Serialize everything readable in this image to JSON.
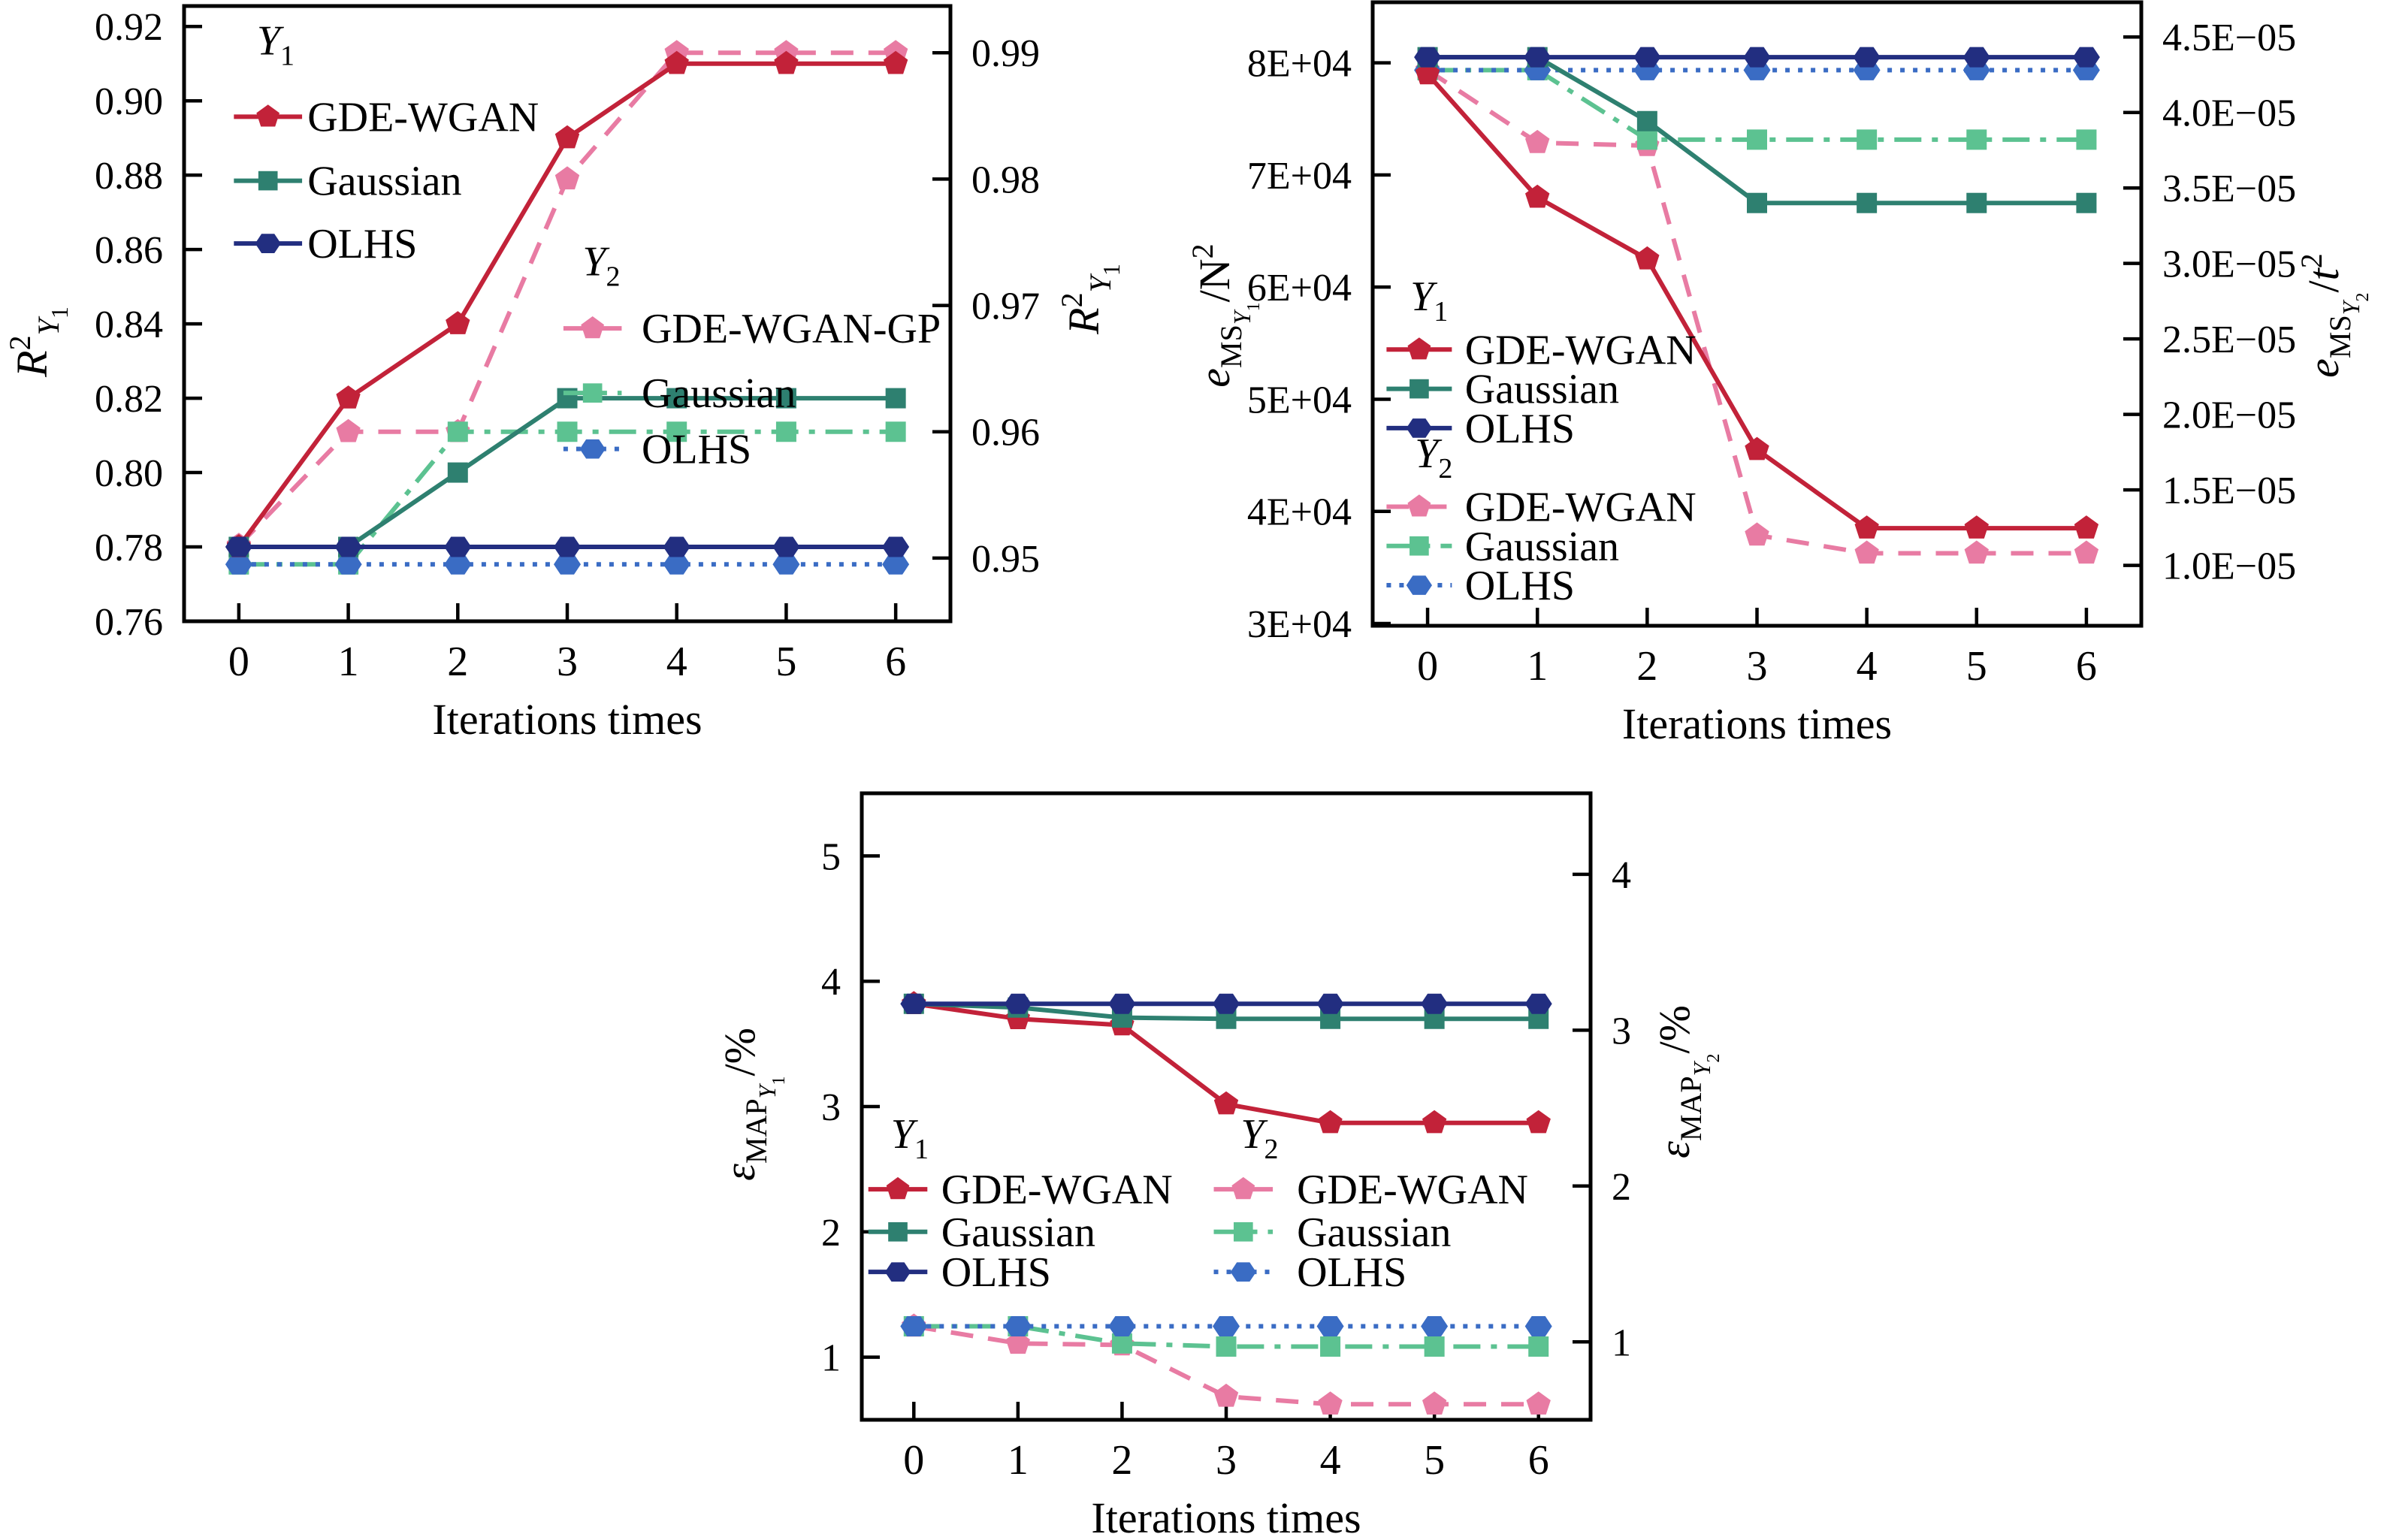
{
  "figure": {
    "background": "#ffffff"
  },
  "colors": {
    "red": "#c22239",
    "pink": "#e87ba3",
    "teal": "#2e8070",
    "light_green": "#5cc291",
    "navy": "#222e80",
    "blue": "#3a6cc4",
    "axis": "#000000"
  },
  "chart_data": [
    {
      "id": "r2-chart",
      "type": "line",
      "x_label": "Iterations times",
      "x_values": [
        0,
        1,
        2,
        3,
        4,
        5,
        6
      ],
      "x_tick_labels": [
        "0",
        "1",
        "2",
        "3",
        "4",
        "5",
        "6"
      ],
      "left_axis": {
        "min": 0.76,
        "max": 0.9255,
        "tick_values": [
          0.76,
          0.78,
          0.8,
          0.82,
          0.84,
          0.86,
          0.88,
          0.9,
          0.92
        ],
        "tick_labels": [
          "0.76",
          "0.78",
          "0.80",
          "0.82",
          "0.84",
          "0.86",
          "0.88",
          "0.90",
          "0.92"
        ],
        "label_text": "R2Y1",
        "label_segments": [
          {
            "t": "R",
            "lvl": "b",
            "i": true
          },
          {
            "t": "2",
            "lvl": "sup"
          },
          {
            "t": "Y",
            "lvl": "sub",
            "i": true
          },
          {
            "t": "1",
            "lvl": "sub2"
          }
        ]
      },
      "right_axis": {
        "min": 0.945,
        "max": 0.9937,
        "tick_values": [
          0.95,
          0.96,
          0.97,
          0.98,
          0.99
        ],
        "tick_labels": [
          "0.95",
          "0.96",
          "0.97",
          "0.98",
          "0.99"
        ],
        "label_text": "R2Y1",
        "label_segments": [
          {
            "t": "R",
            "lvl": "b",
            "i": true
          },
          {
            "t": "2",
            "lvl": "sup"
          },
          {
            "t": "Y",
            "lvl": "sub",
            "i": true
          },
          {
            "t": "1",
            "lvl": "sub2"
          }
        ]
      },
      "legend_groups": [
        {
          "header_main": "Y",
          "header_sub": "1",
          "group": "Y1"
        },
        {
          "header_main": "Y",
          "header_sub": "2",
          "group": "Y2"
        }
      ],
      "series": [
        {
          "id": "c1-y1-gde-wgan",
          "group": "Y1",
          "legend_label": "GDE-WGAN",
          "axis": "left",
          "color": "red",
          "marker": "pentagon",
          "dash": "solid",
          "values": [
            0.78,
            0.82,
            0.84,
            0.89,
            0.91,
            0.91,
            0.91
          ]
        },
        {
          "id": "c1-y1-gaussian",
          "group": "Y1",
          "legend_label": "Gaussian",
          "axis": "left",
          "color": "teal",
          "marker": "square",
          "dash": "solid",
          "values": [
            0.78,
            0.78,
            0.8,
            0.82,
            0.82,
            0.82,
            0.82
          ]
        },
        {
          "id": "c1-y1-olhs",
          "group": "Y1",
          "legend_label": "OLHS",
          "axis": "left",
          "color": "navy",
          "marker": "hexagon",
          "dash": "solid",
          "values": [
            0.78,
            0.78,
            0.78,
            0.78,
            0.78,
            0.78,
            0.78
          ]
        },
        {
          "id": "c1-y2-gde-wgan-gp",
          "group": "Y2",
          "legend_label": "GDE-WGAN-GP",
          "axis": "right",
          "color": "pink",
          "marker": "pentagon",
          "dash": "dash",
          "values": [
            0.951,
            0.96,
            0.96,
            0.98,
            0.99,
            0.99,
            0.99
          ]
        },
        {
          "id": "c1-y2-gaussian",
          "group": "Y2",
          "legend_label": "Gaussian",
          "axis": "right",
          "color": "light_green",
          "marker": "square",
          "dash": "dashdot",
          "values": [
            0.9495,
            0.9495,
            0.96,
            0.96,
            0.96,
            0.96,
            0.96
          ]
        },
        {
          "id": "c1-y2-olhs",
          "group": "Y2",
          "legend_label": "OLHS",
          "axis": "right",
          "color": "blue",
          "marker": "hexagon",
          "dash": "dot",
          "values": [
            0.9495,
            0.9495,
            0.9495,
            0.9495,
            0.9495,
            0.9495,
            0.9495
          ]
        }
      ]
    },
    {
      "id": "ems-chart",
      "type": "line",
      "x_label": "Iterations times",
      "x_values": [
        0,
        1,
        2,
        3,
        4,
        5,
        6
      ],
      "x_tick_labels": [
        "0",
        "1",
        "2",
        "3",
        "4",
        "5",
        "6"
      ],
      "left_axis": {
        "min": 29800,
        "max": 85400,
        "tick_values": [
          30000,
          40000,
          50000,
          60000,
          70000,
          80000
        ],
        "tick_labels": [
          "3E+04",
          "4E+04",
          "5E+04",
          "6E+04",
          "7E+04",
          "8E+04"
        ],
        "label_text": "eMSY1/N2",
        "label_segments": [
          {
            "t": "e",
            "lvl": "b",
            "i": true
          },
          {
            "t": "MS",
            "lvl": "sub"
          },
          {
            "t": "Y",
            "lvl": "sub2",
            "i": true
          },
          {
            "t": "1",
            "lvl": "sub3"
          },
          {
            "t": "/N",
            "lvl": "b"
          },
          {
            "t": "2",
            "lvl": "sup"
          }
        ]
      },
      "right_axis": {
        "min": 6e-06,
        "max": 4.73e-05,
        "tick_values": [
          1e-05,
          1.5e-05,
          2e-05,
          2.5e-05,
          3e-05,
          3.5e-05,
          4e-05,
          4.5e-05
        ],
        "tick_labels": [
          "1.0E−05",
          "1.5E−05",
          "2.0E−05",
          "2.5E−05",
          "3.0E−05",
          "3.5E−05",
          "4.0E−05",
          "4.5E−05"
        ],
        "label_text": "eMSY2/t2",
        "label_segments": [
          {
            "t": "e",
            "lvl": "b",
            "i": true
          },
          {
            "t": "MS",
            "lvl": "sub"
          },
          {
            "t": "Y",
            "lvl": "sub2",
            "i": true
          },
          {
            "t": "2",
            "lvl": "sub3"
          },
          {
            "t": "/",
            "lvl": "b"
          },
          {
            "t": "t",
            "lvl": "b",
            "i": true
          },
          {
            "t": "2",
            "lvl": "sup"
          }
        ]
      },
      "legend_groups": [
        {
          "header_main": "Y",
          "header_sub": "1",
          "group": "Y1"
        },
        {
          "header_main": "Y",
          "header_sub": "2",
          "group": "Y2"
        }
      ],
      "series": [
        {
          "id": "c2-y1-gde-wgan",
          "group": "Y1",
          "legend_label": "GDE-WGAN",
          "axis": "left",
          "color": "red",
          "marker": "pentagon",
          "dash": "solid",
          "values": [
            79000,
            68000,
            62500,
            45500,
            38500,
            38500,
            38500
          ]
        },
        {
          "id": "c2-y1-gaussian",
          "group": "Y1",
          "legend_label": "Gaussian",
          "axis": "left",
          "color": "teal",
          "marker": "square",
          "dash": "solid",
          "values": [
            80500,
            80500,
            74800,
            67500,
            67500,
            67500,
            67500
          ]
        },
        {
          "id": "c2-y1-olhs",
          "group": "Y1",
          "legend_label": "OLHS",
          "axis": "left",
          "color": "navy",
          "marker": "hexagon",
          "dash": "solid",
          "values": [
            80500,
            80500,
            80500,
            80500,
            80500,
            80500,
            80500
          ]
        },
        {
          "id": "c2-y2-gde-wgan",
          "group": "Y2",
          "legend_label": "GDE-WGAN",
          "axis": "right",
          "color": "pink",
          "marker": "pentagon",
          "dash": "dash",
          "values": [
            4.28e-05,
            3.8e-05,
            3.78e-05,
            1.2e-05,
            1.08e-05,
            1.08e-05,
            1.08e-05
          ]
        },
        {
          "id": "c2-y2-gaussian",
          "group": "Y2",
          "legend_label": "Gaussian",
          "axis": "right",
          "color": "light_green",
          "marker": "square",
          "dash": "dashdot",
          "values": [
            4.28e-05,
            4.28e-05,
            3.82e-05,
            3.82e-05,
            3.82e-05,
            3.82e-05,
            3.82e-05
          ]
        },
        {
          "id": "c2-y2-olhs",
          "group": "Y2",
          "legend_label": "OLHS",
          "axis": "right",
          "color": "blue",
          "marker": "hexagon",
          "dash": "dot",
          "values": [
            4.28e-05,
            4.28e-05,
            4.28e-05,
            4.28e-05,
            4.28e-05,
            4.28e-05,
            4.28e-05
          ]
        }
      ]
    },
    {
      "id": "emap-chart",
      "type": "line",
      "x_label": "Iterations times",
      "x_values": [
        0,
        1,
        2,
        3,
        4,
        5,
        6
      ],
      "x_tick_labels": [
        "0",
        "1",
        "2",
        "3",
        "4",
        "5",
        "6"
      ],
      "left_axis": {
        "min": 0.5,
        "max": 5.5,
        "tick_values": [
          1,
          2,
          3,
          4,
          5
        ],
        "tick_labels": [
          "1",
          "2",
          "3",
          "4",
          "5"
        ],
        "label_text": "eMAPY1/%",
        "label_segments": [
          {
            "t": "ε",
            "lvl": "b",
            "i": true
          },
          {
            "t": "MAP",
            "lvl": "sub"
          },
          {
            "t": "Y",
            "lvl": "sub2",
            "i": true
          },
          {
            "t": "1",
            "lvl": "sub3"
          },
          {
            "t": "/%",
            "lvl": "b"
          }
        ]
      },
      "right_axis": {
        "min": 0.5,
        "max": 4.52,
        "tick_values": [
          1,
          2,
          3,
          4
        ],
        "tick_labels": [
          "1",
          "2",
          "3",
          "4"
        ],
        "label_text": "eMAPY2/%",
        "label_segments": [
          {
            "t": "ε",
            "lvl": "b",
            "i": true
          },
          {
            "t": "MAP",
            "lvl": "sub"
          },
          {
            "t": "Y",
            "lvl": "sub2",
            "i": true
          },
          {
            "t": "2",
            "lvl": "sub3"
          },
          {
            "t": "/%",
            "lvl": "b"
          }
        ]
      },
      "legend_groups": [
        {
          "header_main": "Y",
          "header_sub": "1",
          "group": "Y1"
        },
        {
          "header_main": "Y",
          "header_sub": "2",
          "group": "Y2"
        }
      ],
      "series": [
        {
          "id": "c3-y1-gde-wgan",
          "group": "Y1",
          "legend_label": "GDE-WGAN",
          "axis": "left",
          "color": "red",
          "marker": "pentagon",
          "dash": "solid",
          "values": [
            3.82,
            3.7,
            3.65,
            3.02,
            2.87,
            2.87,
            2.87
          ]
        },
        {
          "id": "c3-y1-gaussian",
          "group": "Y1",
          "legend_label": "Gaussian",
          "axis": "left",
          "color": "teal",
          "marker": "square",
          "dash": "solid",
          "values": [
            3.82,
            3.79,
            3.71,
            3.7,
            3.7,
            3.7,
            3.7
          ]
        },
        {
          "id": "c3-y1-olhs",
          "group": "Y1",
          "legend_label": "OLHS",
          "axis": "left",
          "color": "navy",
          "marker": "hexagon",
          "dash": "solid",
          "values": [
            3.82,
            3.82,
            3.82,
            3.82,
            3.82,
            3.82,
            3.82
          ]
        },
        {
          "id": "c3-y2-gde-wgan",
          "group": "Y2",
          "legend_label": "GDE-WGAN",
          "axis": "right",
          "color": "pink",
          "marker": "pentagon",
          "dash": "dash",
          "values": [
            1.1,
            0.99,
            0.98,
            0.65,
            0.6,
            0.6,
            0.6
          ]
        },
        {
          "id": "c3-y2-gaussian",
          "group": "Y2",
          "legend_label": "Gaussian",
          "axis": "right",
          "color": "light_green",
          "marker": "square",
          "dash": "dashdot",
          "values": [
            1.1,
            1.1,
            0.99,
            0.97,
            0.97,
            0.97,
            0.97
          ]
        },
        {
          "id": "c3-y2-olhs",
          "group": "Y2",
          "legend_label": "OLHS",
          "axis": "right",
          "color": "blue",
          "marker": "hexagon",
          "dash": "dot",
          "values": [
            1.1,
            1.1,
            1.1,
            1.1,
            1.1,
            1.1,
            1.1
          ]
        }
      ]
    }
  ]
}
